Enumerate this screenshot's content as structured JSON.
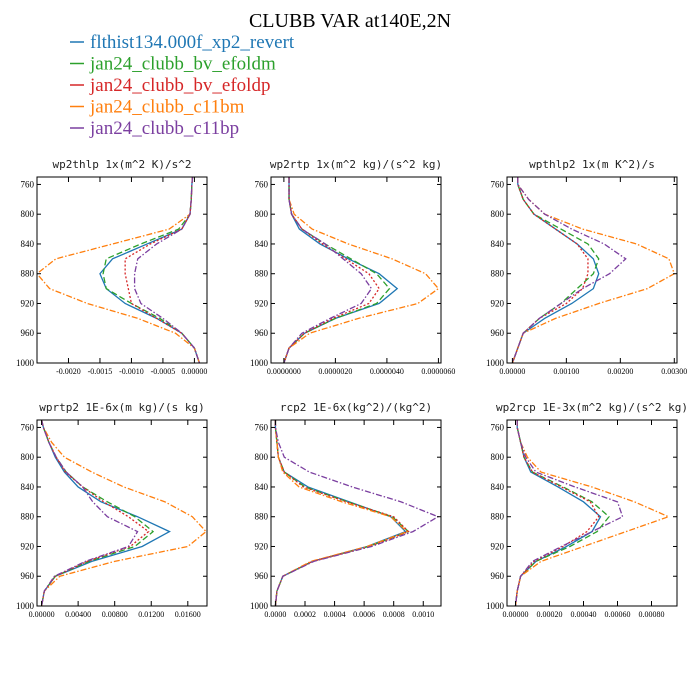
{
  "figure": {
    "title": "CLUBB VAR at140E,2N"
  },
  "legend": [
    {
      "label": "flthist134.000f_xp2_revert",
      "color": "#1f77b4",
      "dash": "solid"
    },
    {
      "label": "jan24_clubb_bv_efoldm",
      "color": "#2ca02c",
      "dash": "dashed"
    },
    {
      "label": "jan24_clubb_bv_efoldp",
      "color": "#d62728",
      "dash": "dotted"
    },
    {
      "label": "jan24_clubb_c11bm",
      "color": "#ff7f0e",
      "dash": "dashdot"
    },
    {
      "label": "jan24_clubb_c11bp",
      "color": "#7b3fa0",
      "dash": "dashdot"
    }
  ],
  "chart_data": [
    {
      "type": "line",
      "title": "wp2thlp  1x(m^2 K)/s^2",
      "xlim": [
        -0.0025,
        0.0002
      ],
      "ylim": [
        1000,
        750
      ],
      "xticks": [
        -0.002,
        -0.0015,
        -0.001,
        -0.0005,
        0.0
      ],
      "xtick_labels": [
        "-0.0020",
        "-0.0015",
        "-0.0010",
        "-0.0005",
        "0.00000"
      ],
      "yticks": [
        760,
        800,
        840,
        880,
        920,
        960,
        1000
      ],
      "ytick_labels": [
        "760",
        "800",
        "840",
        "880",
        "920",
        "960",
        "1000"
      ],
      "y": [
        750,
        760,
        780,
        800,
        820,
        840,
        860,
        880,
        900,
        920,
        940,
        960,
        980,
        1000
      ],
      "series": [
        {
          "name": "flthist134.000f_xp2_revert",
          "values": [
            -3e-05,
            -4e-05,
            -5e-05,
            -7e-05,
            -0.0002,
            -0.00075,
            -0.0013,
            -0.0015,
            -0.0014,
            -0.0011,
            -0.0006,
            -0.0002,
            0.0,
            8e-05
          ]
        },
        {
          "name": "jan24_clubb_bv_efoldm",
          "values": [
            -3e-05,
            -4e-05,
            -5e-05,
            -7e-05,
            -0.00025,
            -0.00085,
            -0.0014,
            -0.00145,
            -0.0014,
            -0.001,
            -0.00055,
            -0.0002,
            0.0,
            8e-05
          ]
        },
        {
          "name": "jan24_clubb_bv_efoldp",
          "values": [
            -3e-05,
            -4e-05,
            -5e-05,
            -7e-05,
            -0.0002,
            -0.0007,
            -0.0011,
            -0.0011,
            -0.00105,
            -0.001,
            -0.0006,
            -0.0002,
            0.0,
            8e-05
          ]
        },
        {
          "name": "jan24_clubb_c11bm",
          "values": [
            -3e-05,
            -4e-05,
            -5e-05,
            -7e-05,
            -0.0004,
            -0.0013,
            -0.0022,
            -0.0025,
            -0.0023,
            -0.0017,
            -0.0009,
            -0.0003,
            0.0,
            8e-05
          ]
        },
        {
          "name": "jan24_clubb_c11bp",
          "values": [
            -3e-05,
            -4e-05,
            -5e-05,
            -7e-05,
            -0.0002,
            -0.0006,
            -0.0009,
            -0.00095,
            -0.00095,
            -0.00085,
            -0.0005,
            -0.0002,
            0.0,
            8e-05
          ]
        }
      ]
    },
    {
      "type": "line",
      "title": "wp2rtp  1x(m^2 kg)/(s^2 kg)",
      "xlim": [
        -5e-07,
        6.1e-06
      ],
      "ylim": [
        1000,
        750
      ],
      "xticks": [
        0.0,
        2e-06,
        4e-06,
        6e-06
      ],
      "xtick_labels": [
        "0.0000000",
        "0.0000020",
        "0.0000040",
        "0.0000060"
      ],
      "yticks": [
        760,
        800,
        840,
        880,
        920,
        960,
        1000
      ],
      "ytick_labels": [
        "760",
        "800",
        "840",
        "880",
        "920",
        "960",
        "1000"
      ],
      "y": [
        750,
        760,
        780,
        800,
        820,
        840,
        860,
        880,
        900,
        920,
        940,
        960,
        980,
        1000
      ],
      "series": [
        {
          "name": "flthist134.000f_xp2_revert",
          "values": [
            2e-07,
            2e-07,
            2e-07,
            3e-07,
            6e-07,
            1.4e-06,
            2.5e-06,
            3.7e-06,
            4.4e-06,
            3.7e-06,
            2e-06,
            8e-07,
            2e-07,
            0.0
          ]
        },
        {
          "name": "jan24_clubb_bv_efoldm",
          "values": [
            2e-07,
            2e-07,
            2e-07,
            3e-07,
            7e-07,
            1.6e-06,
            2.6e-06,
            3.6e-06,
            4.1e-06,
            3.6e-06,
            2e-06,
            8e-07,
            2e-07,
            0.0
          ]
        },
        {
          "name": "jan24_clubb_bv_efoldp",
          "values": [
            2e-07,
            2e-07,
            2e-07,
            3e-07,
            7e-07,
            1.5e-06,
            2.4e-06,
            3.3e-06,
            3.7e-06,
            3.3e-06,
            1.9e-06,
            8e-07,
            2e-07,
            0.0
          ]
        },
        {
          "name": "jan24_clubb_c11bm",
          "values": [
            2e-07,
            2e-07,
            2e-07,
            4e-07,
            1.1e-06,
            2.5e-06,
            4.2e-06,
            5.5e-06,
            6e-06,
            5.2e-06,
            2.9e-06,
            1e-06,
            2e-07,
            0.0
          ]
        },
        {
          "name": "jan24_clubb_c11bp",
          "values": [
            2e-07,
            2e-07,
            2e-07,
            3e-07,
            7e-07,
            1.6e-06,
            2.3e-06,
            3e-06,
            3.4e-06,
            3e-06,
            1.8e-06,
            7e-07,
            2e-07,
            0.0
          ]
        }
      ]
    },
    {
      "type": "line",
      "title": "wpthlp2  1x(m K^2)/s",
      "xlim": [
        -0.0001,
        0.00305
      ],
      "ylim": [
        1000,
        750
      ],
      "xticks": [
        0.0,
        0.001,
        0.002,
        0.003
      ],
      "xtick_labels": [
        "0.00000",
        "0.00100",
        "0.00200",
        "0.00300"
      ],
      "yticks": [
        760,
        800,
        840,
        880,
        920,
        960,
        1000
      ],
      "ytick_labels": [
        "760",
        "800",
        "840",
        "880",
        "920",
        "960",
        "1000"
      ],
      "y": [
        750,
        760,
        780,
        800,
        820,
        840,
        860,
        880,
        900,
        920,
        940,
        960,
        980,
        1000
      ],
      "series": [
        {
          "name": "flthist134.000f_xp2_revert",
          "values": [
            0.0001,
            0.0001,
            0.0002,
            0.0004,
            0.0008,
            0.0012,
            0.0015,
            0.0016,
            0.0015,
            0.0011,
            0.0006,
            0.0002,
            0.0001,
            0.0
          ]
        },
        {
          "name": "jan24_clubb_bv_efoldm",
          "values": [
            0.0001,
            0.0001,
            0.0002,
            0.0004,
            0.0009,
            0.0014,
            0.0016,
            0.0015,
            0.0012,
            0.0009,
            0.0005,
            0.0002,
            0.0001,
            0.0
          ]
        },
        {
          "name": "jan24_clubb_bv_efoldp",
          "values": [
            0.0001,
            0.0001,
            0.0002,
            0.0004,
            0.0008,
            0.0012,
            0.0014,
            0.0014,
            0.0013,
            0.001,
            0.0005,
            0.0002,
            0.0001,
            0.0
          ]
        },
        {
          "name": "jan24_clubb_c11bm",
          "values": [
            0.0001,
            0.0001,
            0.0003,
            0.0006,
            0.0013,
            0.0023,
            0.0029,
            0.003,
            0.0025,
            0.0016,
            0.0008,
            0.0002,
            0.0001,
            0.0
          ]
        },
        {
          "name": "jan24_clubb_c11bp",
          "values": [
            0.0001,
            0.0001,
            0.0003,
            0.0006,
            0.0011,
            0.0017,
            0.0021,
            0.0018,
            0.0013,
            0.0009,
            0.0005,
            0.0002,
            0.0001,
            0.0
          ]
        }
      ]
    },
    {
      "type": "line",
      "title": "wprtp2  1E-6x(m kg)/(s kg)",
      "xlim": [
        -0.0005,
        0.0181
      ],
      "ylim": [
        1000,
        750
      ],
      "xticks": [
        0.0,
        0.004,
        0.008,
        0.012,
        0.016
      ],
      "xtick_labels": [
        "0.00000",
        "0.00400",
        "0.00800",
        "0.01200",
        "0.01600"
      ],
      "yticks": [
        760,
        800,
        840,
        880,
        920,
        960,
        1000
      ],
      "ytick_labels": [
        "760",
        "800",
        "840",
        "880",
        "920",
        "960",
        "1000"
      ],
      "y": [
        750,
        760,
        780,
        800,
        820,
        840,
        860,
        880,
        900,
        920,
        940,
        960,
        980,
        1000
      ],
      "series": [
        {
          "name": "flthist134.000f_xp2_revert",
          "values": [
            0.0,
            0.0002,
            0.0008,
            0.0015,
            0.0025,
            0.004,
            0.0065,
            0.0105,
            0.014,
            0.011,
            0.0055,
            0.0015,
            0.0003,
            0.0
          ]
        },
        {
          "name": "jan24_clubb_bv_efoldm",
          "values": [
            0.0,
            0.0002,
            0.0008,
            0.0016,
            0.0027,
            0.0045,
            0.0072,
            0.0102,
            0.0122,
            0.0102,
            0.0052,
            0.0015,
            0.0003,
            0.0
          ]
        },
        {
          "name": "jan24_clubb_bv_efoldp",
          "values": [
            0.0,
            0.0002,
            0.0008,
            0.0016,
            0.0026,
            0.0045,
            0.0068,
            0.0095,
            0.0117,
            0.0097,
            0.005,
            0.0015,
            0.0003,
            0.0
          ]
        },
        {
          "name": "jan24_clubb_c11bm",
          "values": [
            0.0,
            0.0002,
            0.0011,
            0.0025,
            0.0055,
            0.009,
            0.0135,
            0.0165,
            0.018,
            0.016,
            0.008,
            0.002,
            0.0003,
            0.0
          ]
        },
        {
          "name": "jan24_clubb_c11bp",
          "values": [
            0.0,
            0.0002,
            0.0008,
            0.0016,
            0.0027,
            0.0045,
            0.0056,
            0.0072,
            0.0105,
            0.0095,
            0.0048,
            0.0014,
            0.0003,
            0.0
          ]
        }
      ]
    },
    {
      "type": "line",
      "title": "rcp2  1E-6x(kg^2)/(kg^2)",
      "xlim": [
        -3e-05,
        0.00112
      ],
      "ylim": [
        1000,
        750
      ],
      "xticks": [
        0.0,
        0.0002,
        0.0004,
        0.0006,
        0.0008,
        0.001
      ],
      "xtick_labels": [
        "0.0000",
        "0.0002",
        "0.0004",
        "0.0006",
        "0.0008",
        "0.0010"
      ],
      "yticks": [
        760,
        800,
        840,
        880,
        920,
        960,
        1000
      ],
      "ytick_labels": [
        "760",
        "800",
        "840",
        "880",
        "920",
        "960",
        "1000"
      ],
      "y": [
        750,
        760,
        780,
        800,
        820,
        840,
        860,
        880,
        900,
        920,
        940,
        960,
        980,
        1000
      ],
      "series": [
        {
          "name": "flthist134.000f_xp2_revert",
          "values": [
            0.0,
            0.0,
            1e-05,
            2e-05,
            6e-05,
            0.00022,
            0.0005,
            0.00078,
            0.00088,
            0.00062,
            0.00025,
            5e-05,
            1e-05,
            0.0
          ]
        },
        {
          "name": "jan24_clubb_bv_efoldm",
          "values": [
            0.0,
            0.0,
            1e-05,
            2e-05,
            6e-05,
            0.0002,
            0.00049,
            0.00079,
            0.0009,
            0.00063,
            0.00025,
            5e-05,
            1e-05,
            0.0
          ]
        },
        {
          "name": "jan24_clubb_bv_efoldp",
          "values": [
            0.0,
            0.0,
            1e-05,
            2e-05,
            6e-05,
            0.00019,
            0.00048,
            0.0008,
            0.0009,
            0.00064,
            0.00025,
            5e-05,
            1e-05,
            0.0
          ]
        },
        {
          "name": "jan24_clubb_c11bm",
          "values": [
            0.0,
            0.0,
            1e-05,
            2e-05,
            5e-05,
            0.00016,
            0.00045,
            0.00078,
            0.00089,
            0.00062,
            0.00024,
            5e-05,
            1e-05,
            0.0
          ]
        },
        {
          "name": "jan24_clubb_c11bp",
          "values": [
            0.0,
            0.0,
            2e-05,
            6e-05,
            0.00023,
            0.00052,
            0.00085,
            0.0011,
            0.00093,
            0.00065,
            0.00026,
            5e-05,
            1e-05,
            0.0
          ]
        }
      ]
    },
    {
      "type": "line",
      "title": "wp2rcp  1E-3x(m^2 kg)/(s^2 kg)",
      "xlim": [
        -5e-05,
        0.00095
      ],
      "ylim": [
        1000,
        750
      ],
      "xticks": [
        0.0,
        0.0002,
        0.0004,
        0.0006,
        0.0008
      ],
      "xtick_labels": [
        "0.00000",
        "0.00020",
        "0.00040",
        "0.00060",
        "0.00080"
      ],
      "yticks": [
        760,
        800,
        840,
        880,
        920,
        960,
        1000
      ],
      "ytick_labels": [
        "760",
        "800",
        "840",
        "880",
        "920",
        "960",
        "1000"
      ],
      "y": [
        750,
        760,
        780,
        800,
        820,
        840,
        860,
        880,
        900,
        920,
        940,
        960,
        980,
        1000
      ],
      "series": [
        {
          "name": "flthist134.000f_xp2_revert",
          "values": [
            1e-05,
            1e-05,
            3e-05,
            5e-05,
            9e-05,
            0.00025,
            0.0004,
            0.0005,
            0.00045,
            0.0003,
            0.00012,
            3e-05,
            1e-05,
            0.0
          ]
        },
        {
          "name": "jan24_clubb_bv_efoldm",
          "values": [
            1e-05,
            1e-05,
            3e-05,
            5e-05,
            0.0001,
            0.00028,
            0.00045,
            0.00055,
            0.00048,
            0.00032,
            0.00012,
            3e-05,
            1e-05,
            0.0
          ]
        },
        {
          "name": "jan24_clubb_bv_efoldp",
          "values": [
            1e-05,
            1e-05,
            3e-05,
            5e-05,
            0.0001,
            0.00027,
            0.00044,
            0.00049,
            0.00042,
            0.00028,
            0.00011,
            3e-05,
            1e-05,
            0.0
          ]
        },
        {
          "name": "jan24_clubb_c11bm",
          "values": [
            1e-05,
            1e-05,
            3e-05,
            7e-05,
            0.00015,
            0.00045,
            0.0007,
            0.0009,
            0.00065,
            0.0004,
            0.00015,
            3e-05,
            1e-05,
            0.0
          ]
        },
        {
          "name": "jan24_clubb_c11bp",
          "values": [
            1e-05,
            1e-05,
            3e-05,
            6e-05,
            0.00012,
            0.00035,
            0.0006,
            0.00063,
            0.00045,
            0.00027,
            0.0001,
            3e-05,
            1e-05,
            0.0
          ]
        }
      ]
    }
  ]
}
